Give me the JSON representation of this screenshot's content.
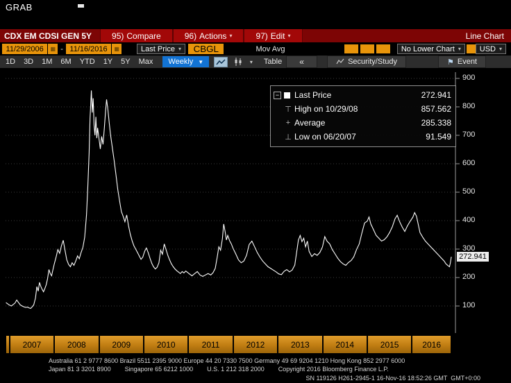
{
  "header": {
    "title": "GRAB"
  },
  "menu_bar": {
    "ticker": "CDX EM CDSI GEN 5Y",
    "items": [
      {
        "num": "95)",
        "label": "Compare"
      },
      {
        "num": "96)",
        "label": "Actions"
      },
      {
        "num": "97)",
        "label": "Edit"
      }
    ],
    "right_label": "Line Chart"
  },
  "fields_bar": {
    "date_from": "11/29/2006",
    "date_range_sep": "-",
    "date_to": "11/16/2016",
    "price_type": "Last Price",
    "source_code": "CBGL",
    "mov_avg_label": "Mov Avg",
    "lower_chart": "No Lower Chart",
    "currency": "USD"
  },
  "period_bar": {
    "ranges": [
      "1D",
      "3D",
      "1M",
      "6M",
      "YTD",
      "1Y",
      "5Y",
      "Max"
    ],
    "frequency": "Weekly",
    "table_label": "Table",
    "security_study_label": "Security/Study",
    "event_label": "Event"
  },
  "icons": {
    "chevron_down": "▾",
    "chevron_down_filled": "▼",
    "double_left_arrow": "«",
    "flag": "⚑",
    "calendar": "▦",
    "minus": "−",
    "high_marker": "⊤",
    "low_marker": "⊥",
    "average_marker": "+"
  },
  "legend": {
    "rows": [
      {
        "label": "Last Price",
        "value": "272.941"
      },
      {
        "label": "High on 10/29/08",
        "value": "857.562"
      },
      {
        "label": "Average",
        "value": "285.338"
      },
      {
        "label": "Low on 06/20/07",
        "value": "91.549"
      }
    ]
  },
  "chart": {
    "last_price_tag": "272.941"
  },
  "footer": {
    "line1": "Australia 61 2 9777 8600 Brazil 5511 2395 9000 Europe 44 20 7330 7500 Germany 49 69 9204 1210 Hong Kong 852 2977 6000",
    "line2": "Japan 81 3 3201 8900        Singapore 65 6212 1000        U.S. 1 212 318 2000        Copyright 2016 Bloomberg Finance L.P.",
    "line3": "SN 119126 H261-2945-1 16-Nov-16 18:52:26 GMT  GMT+0:00"
  },
  "chart_data": {
    "type": "line",
    "title": "CDX EM CDSI GEN 5Y",
    "frequency": "Weekly",
    "x_domain": [
      2006.91,
      2016.88
    ],
    "x_axis": {
      "years": [
        2007,
        2008,
        2009,
        2010,
        2011,
        2012,
        2013,
        2014,
        2015,
        2016
      ]
    },
    "y_axis": {
      "ticks": [
        900,
        800,
        700,
        600,
        500,
        400,
        300,
        200,
        100
      ],
      "range": [
        60,
        940
      ]
    },
    "grid": "horizontal-dotted",
    "legend_position": "top-right",
    "stats": {
      "last": 272.941,
      "high": 857.562,
      "high_date": "10/29/08",
      "average": 285.338,
      "low": 91.549,
      "low_date": "06/20/07"
    },
    "series": [
      {
        "name": "Last Price",
        "color": "#ffffff",
        "last_value": 272.941,
        "points": [
          [
            2006.92,
            112
          ],
          [
            2006.96,
            107
          ],
          [
            2007.0,
            103
          ],
          [
            2007.04,
            100
          ],
          [
            2007.08,
            105
          ],
          [
            2007.12,
            110
          ],
          [
            2007.16,
            121
          ],
          [
            2007.2,
            112
          ],
          [
            2007.24,
            104
          ],
          [
            2007.28,
            100
          ],
          [
            2007.32,
            97
          ],
          [
            2007.36,
            95
          ],
          [
            2007.4,
            96
          ],
          [
            2007.44,
            93
          ],
          [
            2007.47,
            91.5
          ],
          [
            2007.5,
            96
          ],
          [
            2007.54,
            104
          ],
          [
            2007.58,
            128
          ],
          [
            2007.61,
            168
          ],
          [
            2007.64,
            152
          ],
          [
            2007.67,
            183
          ],
          [
            2007.7,
            168
          ],
          [
            2007.73,
            158
          ],
          [
            2007.76,
            150
          ],
          [
            2007.79,
            162
          ],
          [
            2007.82,
            175
          ],
          [
            2007.85,
            196
          ],
          [
            2007.88,
            228
          ],
          [
            2007.91,
            214
          ],
          [
            2007.94,
            206
          ],
          [
            2007.97,
            228
          ],
          [
            2008.0,
            248
          ],
          [
            2008.04,
            272
          ],
          [
            2008.08,
            298
          ],
          [
            2008.12,
            285
          ],
          [
            2008.16,
            312
          ],
          [
            2008.2,
            331
          ],
          [
            2008.24,
            296
          ],
          [
            2008.28,
            262
          ],
          [
            2008.32,
            246
          ],
          [
            2008.36,
            238
          ],
          [
            2008.4,
            252
          ],
          [
            2008.44,
            243
          ],
          [
            2008.48,
            258
          ],
          [
            2008.52,
            276
          ],
          [
            2008.56,
            266
          ],
          [
            2008.6,
            288
          ],
          [
            2008.64,
            306
          ],
          [
            2008.68,
            342
          ],
          [
            2008.72,
            420
          ],
          [
            2008.75,
            520
          ],
          [
            2008.78,
            640
          ],
          [
            2008.8,
            760
          ],
          [
            2008.83,
            857.6
          ],
          [
            2008.85,
            780
          ],
          [
            2008.87,
            830
          ],
          [
            2008.89,
            735
          ],
          [
            2008.91,
            700
          ],
          [
            2008.93,
            765
          ],
          [
            2008.95,
            690
          ],
          [
            2008.97,
            726
          ],
          [
            2009.0,
            688
          ],
          [
            2009.03,
            652
          ],
          [
            2009.06,
            696
          ],
          [
            2009.09,
            668
          ],
          [
            2009.12,
            726
          ],
          [
            2009.15,
            790
          ],
          [
            2009.17,
            826
          ],
          [
            2009.2,
            788
          ],
          [
            2009.23,
            742
          ],
          [
            2009.26,
            700
          ],
          [
            2009.3,
            655
          ],
          [
            2009.34,
            610
          ],
          [
            2009.38,
            560
          ],
          [
            2009.42,
            510
          ],
          [
            2009.46,
            470
          ],
          [
            2009.5,
            432
          ],
          [
            2009.54,
            415
          ],
          [
            2009.58,
            396
          ],
          [
            2009.62,
            420
          ],
          [
            2009.66,
            382
          ],
          [
            2009.7,
            352
          ],
          [
            2009.74,
            330
          ],
          [
            2009.78,
            312
          ],
          [
            2009.82,
            300
          ],
          [
            2009.86,
            288
          ],
          [
            2009.9,
            276
          ],
          [
            2009.94,
            264
          ],
          [
            2009.98,
            272
          ],
          [
            2010.02,
            292
          ],
          [
            2010.06,
            304
          ],
          [
            2010.1,
            288
          ],
          [
            2010.14,
            268
          ],
          [
            2010.18,
            250
          ],
          [
            2010.22,
            238
          ],
          [
            2010.26,
            230
          ],
          [
            2010.3,
            236
          ],
          [
            2010.34,
            252
          ],
          [
            2010.38,
            296
          ],
          [
            2010.42,
            282
          ],
          [
            2010.46,
            318
          ],
          [
            2010.5,
            298
          ],
          [
            2010.54,
            278
          ],
          [
            2010.58,
            262
          ],
          [
            2010.62,
            248
          ],
          [
            2010.66,
            238
          ],
          [
            2010.7,
            230
          ],
          [
            2010.74,
            224
          ],
          [
            2010.78,
            219
          ],
          [
            2010.82,
            214
          ],
          [
            2010.86,
            221
          ],
          [
            2010.9,
            216
          ],
          [
            2010.94,
            223
          ],
          [
            2010.98,
            218
          ],
          [
            2011.02,
            213
          ],
          [
            2011.08,
            206
          ],
          [
            2011.14,
            214
          ],
          [
            2011.2,
            221
          ],
          [
            2011.26,
            209
          ],
          [
            2011.32,
            204
          ],
          [
            2011.38,
            209
          ],
          [
            2011.44,
            214
          ],
          [
            2011.5,
            209
          ],
          [
            2011.55,
            217
          ],
          [
            2011.6,
            232
          ],
          [
            2011.64,
            268
          ],
          [
            2011.68,
            308
          ],
          [
            2011.72,
            296
          ],
          [
            2011.76,
            336
          ],
          [
            2011.79,
            388
          ],
          [
            2011.82,
            362
          ],
          [
            2011.85,
            332
          ],
          [
            2011.88,
            348
          ],
          [
            2011.92,
            330
          ],
          [
            2011.96,
            318
          ],
          [
            2012.0,
            302
          ],
          [
            2012.06,
            283
          ],
          [
            2012.12,
            262
          ],
          [
            2012.18,
            252
          ],
          [
            2012.24,
            258
          ],
          [
            2012.3,
            278
          ],
          [
            2012.36,
            316
          ],
          [
            2012.42,
            328
          ],
          [
            2012.48,
            308
          ],
          [
            2012.54,
            288
          ],
          [
            2012.6,
            272
          ],
          [
            2012.66,
            258
          ],
          [
            2012.72,
            248
          ],
          [
            2012.78,
            238
          ],
          [
            2012.84,
            232
          ],
          [
            2012.9,
            226
          ],
          [
            2012.96,
            220
          ],
          [
            2013.02,
            213
          ],
          [
            2013.08,
            210
          ],
          [
            2013.14,
            222
          ],
          [
            2013.2,
            228
          ],
          [
            2013.26,
            220
          ],
          [
            2013.32,
            226
          ],
          [
            2013.38,
            244
          ],
          [
            2013.42,
            288
          ],
          [
            2013.46,
            332
          ],
          [
            2013.5,
            348
          ],
          [
            2013.54,
            326
          ],
          [
            2013.58,
            338
          ],
          [
            2013.62,
            308
          ],
          [
            2013.66,
            328
          ],
          [
            2013.7,
            292
          ],
          [
            2013.76,
            274
          ],
          [
            2013.82,
            284
          ],
          [
            2013.88,
            278
          ],
          [
            2013.94,
            288
          ],
          [
            2014.0,
            308
          ],
          [
            2014.05,
            344
          ],
          [
            2014.1,
            328
          ],
          [
            2014.16,
            318
          ],
          [
            2014.22,
            298
          ],
          [
            2014.28,
            283
          ],
          [
            2014.34,
            268
          ],
          [
            2014.4,
            256
          ],
          [
            2014.46,
            248
          ],
          [
            2014.52,
            243
          ],
          [
            2014.58,
            253
          ],
          [
            2014.64,
            260
          ],
          [
            2014.7,
            273
          ],
          [
            2014.76,
            298
          ],
          [
            2014.82,
            318
          ],
          [
            2014.88,
            356
          ],
          [
            2014.94,
            392
          ],
          [
            2015.0,
            398
          ],
          [
            2015.04,
            413
          ],
          [
            2015.08,
            388
          ],
          [
            2015.14,
            368
          ],
          [
            2015.2,
            348
          ],
          [
            2015.26,
            338
          ],
          [
            2015.32,
            328
          ],
          [
            2015.38,
            333
          ],
          [
            2015.44,
            343
          ],
          [
            2015.5,
            358
          ],
          [
            2015.56,
            378
          ],
          [
            2015.62,
            406
          ],
          [
            2015.67,
            419
          ],
          [
            2015.72,
            398
          ],
          [
            2015.78,
            378
          ],
          [
            2015.84,
            362
          ],
          [
            2015.9,
            382
          ],
          [
            2015.96,
            398
          ],
          [
            2016.02,
            412
          ],
          [
            2016.06,
            428
          ],
          [
            2016.1,
            416
          ],
          [
            2016.14,
            388
          ],
          [
            2016.18,
            358
          ],
          [
            2016.24,
            342
          ],
          [
            2016.3,
            328
          ],
          [
            2016.36,
            318
          ],
          [
            2016.42,
            308
          ],
          [
            2016.48,
            298
          ],
          [
            2016.54,
            288
          ],
          [
            2016.6,
            278
          ],
          [
            2016.66,
            268
          ],
          [
            2016.72,
            258
          ],
          [
            2016.76,
            248
          ],
          [
            2016.8,
            243
          ],
          [
            2016.84,
            238
          ],
          [
            2016.86,
            252
          ],
          [
            2016.88,
            272.941
          ]
        ]
      }
    ]
  }
}
